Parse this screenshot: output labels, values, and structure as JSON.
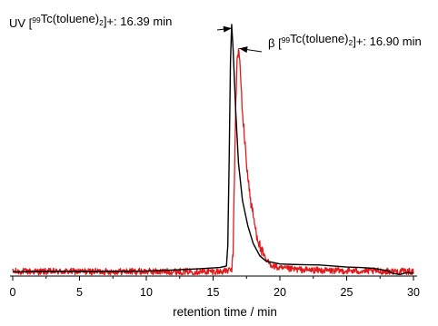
{
  "chart_data": {
    "type": "line",
    "title": "",
    "xlabel": "retention time / min",
    "ylabel": "",
    "xlim": [
      0,
      30
    ],
    "ylim": [
      0,
      1
    ],
    "x_ticks": [
      0,
      5,
      10,
      15,
      20,
      25,
      30
    ],
    "x_tick_labels": [
      "0",
      "5",
      "10",
      "15",
      "20",
      "25",
      "30"
    ],
    "grid": false,
    "legend": "none",
    "series": [
      {
        "id": "uv",
        "color": "#000000",
        "points": [
          [
            0,
            0.016
          ],
          [
            2,
            0.018
          ],
          [
            4,
            0.019
          ],
          [
            6,
            0.018
          ],
          [
            8,
            0.019
          ],
          [
            10,
            0.02
          ],
          [
            12,
            0.024
          ],
          [
            14,
            0.029
          ],
          [
            15.5,
            0.034
          ],
          [
            16.0,
            0.04
          ],
          [
            16.1,
            0.12
          ],
          [
            16.2,
            0.45
          ],
          [
            16.3,
            0.85
          ],
          [
            16.39,
            1.0
          ],
          [
            16.5,
            0.9
          ],
          [
            16.7,
            0.65
          ],
          [
            16.9,
            0.45
          ],
          [
            17.2,
            0.3
          ],
          [
            17.6,
            0.2
          ],
          [
            18.0,
            0.13
          ],
          [
            18.5,
            0.08
          ],
          [
            19.0,
            0.058
          ],
          [
            19.5,
            0.054
          ],
          [
            20.0,
            0.048
          ],
          [
            21,
            0.046
          ],
          [
            22,
            0.045
          ],
          [
            23,
            0.044
          ],
          [
            24,
            0.04
          ],
          [
            25,
            0.036
          ],
          [
            26,
            0.034
          ],
          [
            27,
            0.031
          ],
          [
            28,
            0.022
          ],
          [
            28.5,
            0.01
          ],
          [
            29,
            0.006
          ],
          [
            29.5,
            0.014
          ],
          [
            30,
            0.012
          ]
        ]
      },
      {
        "id": "beta",
        "color": "#e31a1c",
        "points": [
          [
            0,
            0.018
          ],
          [
            15.5,
            0.018
          ],
          [
            16.0,
            0.02
          ],
          [
            16.4,
            0.025
          ],
          [
            16.5,
            0.1
          ],
          [
            16.6,
            0.4
          ],
          [
            16.7,
            0.7
          ],
          [
            16.8,
            0.85
          ],
          [
            16.9,
            0.9
          ],
          [
            17.0,
            0.85
          ],
          [
            17.2,
            0.65
          ],
          [
            17.5,
            0.45
          ],
          [
            17.8,
            0.3
          ],
          [
            18.2,
            0.18
          ],
          [
            18.6,
            0.1
          ],
          [
            19.0,
            0.06
          ],
          [
            19.5,
            0.04
          ],
          [
            20.0,
            0.03
          ],
          [
            22,
            0.024
          ],
          [
            24,
            0.021
          ],
          [
            26,
            0.02
          ],
          [
            28,
            0.019
          ],
          [
            30,
            0.018
          ]
        ],
        "noise": 0.013
      }
    ],
    "annotations": [
      {
        "id": "uv",
        "parts": [
          {
            "t": "UV [",
            "s": "normal"
          },
          {
            "t": "99",
            "s": "sup"
          },
          {
            "t": "Tc(toluene)",
            "s": "normal"
          },
          {
            "t": "2",
            "s": "sub"
          },
          {
            "t": "]+: 16.39 min",
            "s": "normal"
          }
        ],
        "arrow_to": [
          16.39,
          0.985
        ]
      },
      {
        "id": "beta",
        "parts": [
          {
            "t": "β [",
            "s": "normal"
          },
          {
            "t": "99",
            "s": "sup"
          },
          {
            "t": "Tc(toluene)",
            "s": "normal"
          },
          {
            "t": "2",
            "s": "sub"
          },
          {
            "t": "]+: 16.90 min",
            "s": "normal"
          }
        ],
        "arrow_to": [
          16.95,
          0.905
        ]
      }
    ]
  }
}
